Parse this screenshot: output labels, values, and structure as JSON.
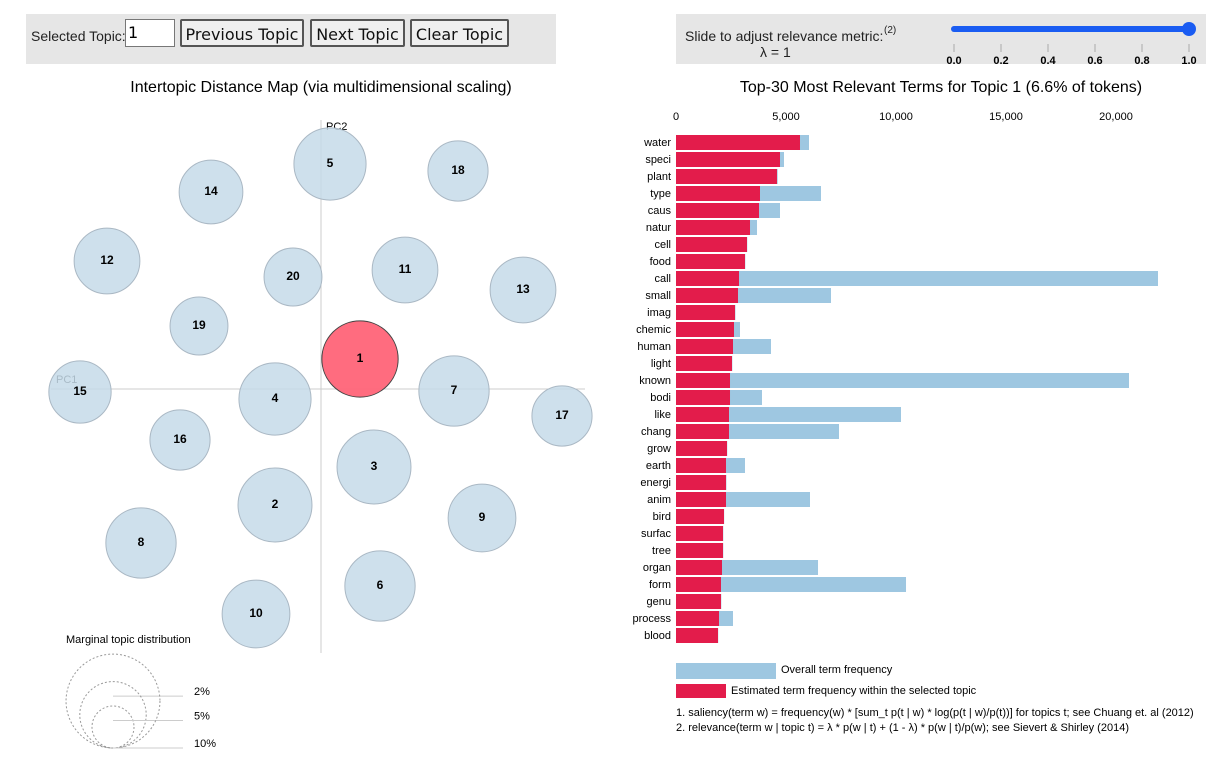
{
  "controls": {
    "topic_label": "Selected Topic:",
    "topic_value": "1",
    "buttons": [
      "Previous Topic",
      "Next Topic",
      "Clear Topic"
    ]
  },
  "slider": {
    "label": "Slide to adjust relevance metric:",
    "footnote_mark": "(2)",
    "lambda_label": "λ = 1",
    "value": 1,
    "lim": [
      0,
      1
    ],
    "color": "#1a5cf2",
    "ticks": [
      {
        "value": 0,
        "label": "0.0"
      },
      {
        "value": 0.2,
        "label": "0.2"
      },
      {
        "value": 0.4,
        "label": "0.4"
      },
      {
        "value": 0.6,
        "label": "0.6"
      },
      {
        "value": 0.8,
        "label": "0.8"
      },
      {
        "value": 1,
        "label": "1.0"
      }
    ]
  },
  "chart_data": [
    {
      "type": "bubble",
      "title": "Intertopic Distance Map (via multidimensional scaling)",
      "x_label": "PC1",
      "y_label": "PC2",
      "categories": [
        "1",
        "2",
        "3",
        "4",
        "5",
        "6",
        "7",
        "8",
        "9",
        "10",
        "11",
        "12",
        "13",
        "14",
        "15",
        "16",
        "17",
        "18",
        "19",
        "20"
      ],
      "x": [
        0.39,
        -0.46,
        0.53,
        -0.46,
        0.09,
        0.59,
        1.33,
        -1.8,
        1.61,
        -0.65,
        0.84,
        -2.14,
        2.02,
        -1.1,
        -2.41,
        -1.41,
        2.41,
        1.37,
        -1.22,
        -0.28
      ],
      "values": [
        0.3,
        -1.16,
        -0.78,
        -0.1,
        2.25,
        -1.97,
        -0.02,
        -1.54,
        -1.29,
        -2.25,
        1.19,
        1.28,
        0.99,
        1.97,
        -0.03,
        -0.51,
        -0.27,
        2.18,
        0.63,
        1.12
      ],
      "sizes": [
        6.6,
        6.2,
        6.2,
        5.9,
        5.9,
        5.6,
        5.6,
        5.6,
        5.2,
        5.2,
        4.9,
        4.9,
        4.9,
        4.6,
        4.4,
        4.1,
        4.1,
        4.1,
        3.8,
        3.8
      ],
      "xlim": [
        -2.7,
        2.7
      ],
      "ylim": [
        -2.7,
        2.7
      ],
      "color": "#c6dbe9",
      "highlight_color": "#ff6478",
      "size_legend": {
        "title": "Marginal topic distribution",
        "ticks": [
          {
            "value": 2,
            "label": "2%"
          },
          {
            "value": 5,
            "label": "5%"
          },
          {
            "value": 10,
            "label": "10%"
          }
        ]
      }
    },
    {
      "type": "hbar",
      "title": "Top-30 Most Relevant Terms for Topic 1 (6.6% of tokens)",
      "categories": [
        "water",
        "speci",
        "plant",
        "type",
        "caus",
        "natur",
        "cell",
        "food",
        "call",
        "small",
        "imag",
        "chemic",
        "human",
        "light",
        "known",
        "bodi",
        "like",
        "chang",
        "grow",
        "earth",
        "energi",
        "anim",
        "bird",
        "surfac",
        "tree",
        "organ",
        "form",
        "genu",
        "process",
        "blood"
      ],
      "series": [
        {
          "name": "Overall term frequency",
          "color": "#9ec7e1",
          "values": [
            6045,
            4909,
            4620,
            6591,
            4727,
            3682,
            3240,
            3150,
            21909,
            7045,
            2700,
            2909,
            4318,
            2560,
            20591,
            3909,
            10227,
            7409,
            2330,
            3136,
            2290,
            6091,
            2190,
            2150,
            2150,
            6455,
            10455,
            2060,
            2591,
            1920
          ]
        },
        {
          "name": "Estimated term frequency within the selected topic",
          "color": "#e31c4b",
          "values": [
            5636,
            4727,
            4590,
            3818,
            3773,
            3364,
            3227,
            3136,
            2864,
            2818,
            2682,
            2636,
            2591,
            2545,
            2455,
            2455,
            2409,
            2409,
            2318,
            2273,
            2273,
            2273,
            2182,
            2136,
            2136,
            2091,
            2045,
            2045,
            1955,
            1909
          ]
        }
      ],
      "xlim": [
        0,
        23500
      ],
      "xticks": [
        0,
        {
          "value": 5000,
          "label": "5,000"
        },
        {
          "value": 10000,
          "label": "10,000"
        },
        {
          "value": 15000,
          "label": "15,000"
        },
        {
          "value": 20000,
          "label": "20,000"
        }
      ]
    }
  ],
  "footnotes": [
    "1. saliency(term w) = frequency(w) * [sum_t p(t | w) * log(p(t | w)/p(t))] for topics t; see Chuang et. al (2012)",
    "2. relevance(term w | topic t) = λ * p(w | t) + (1 - λ) * p(w | t)/p(w); see Sievert & Shirley (2014)"
  ]
}
